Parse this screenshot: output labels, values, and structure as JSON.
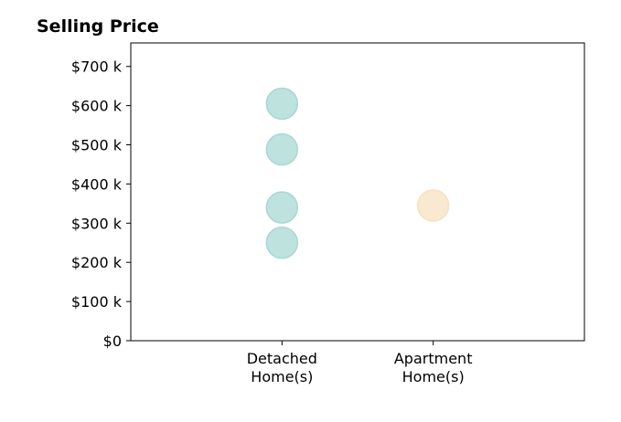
{
  "chart_data": {
    "type": "scatter",
    "title": "Selling Price",
    "xlabel": "",
    "ylabel": "",
    "categories": [
      [
        "Detached",
        "Home(s)"
      ],
      [
        "Apartment",
        "Home(s)"
      ]
    ],
    "x_range": [
      -1,
      2
    ],
    "ylim": [
      0,
      760000
    ],
    "y_ticks": [
      {
        "value": 0,
        "label": "$0"
      },
      {
        "value": 100000,
        "label": "$100 k"
      },
      {
        "value": 200000,
        "label": "$200 k"
      },
      {
        "value": 300000,
        "label": "$300 k"
      },
      {
        "value": 400000,
        "label": "$400 k"
      },
      {
        "value": 500000,
        "label": "$500 k"
      },
      {
        "value": 600000,
        "label": "$600 k"
      },
      {
        "value": 700000,
        "label": "$700 k"
      }
    ],
    "grid": false,
    "legend": "none",
    "series": [
      {
        "category_index": 0,
        "color": "#a8d8d2",
        "values": [
          605000,
          488000,
          340000,
          250000
        ]
      },
      {
        "category_index": 1,
        "color": "#f5e2c0",
        "values": [
          345000
        ]
      }
    ]
  }
}
